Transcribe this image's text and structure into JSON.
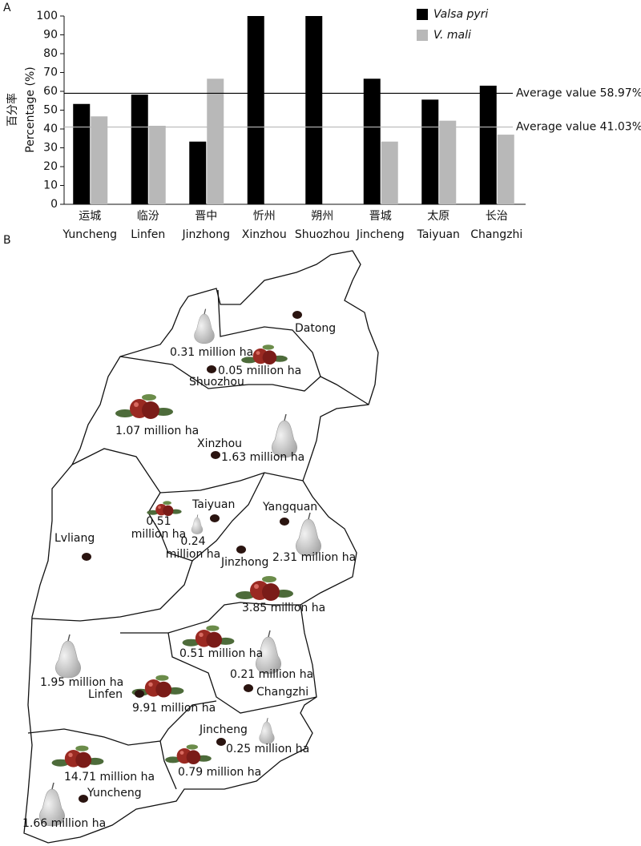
{
  "chart_data": {
    "type": "bar",
    "panel_label": "A",
    "y_label": "Percentage (%)",
    "y_label_zh": "百分率",
    "categories": [
      "Yuncheng",
      "Linfen",
      "Jinzhong",
      "Xinzhou",
      "Shuozhou",
      "Jincheng",
      "Taiyuan",
      "Changzhi"
    ],
    "category_labels_zh": [
      "运城",
      "临汾",
      "晋中",
      "忻州",
      "朔州",
      "晋城",
      "太原",
      "长治"
    ],
    "series": [
      {
        "name": "Valsa pyri",
        "color": "#000000",
        "values": [
          53.3,
          58.3,
          33.3,
          100,
          100,
          66.7,
          55.6,
          63.0
        ]
      },
      {
        "name": "V. mali",
        "color": "#b8b8b8",
        "values": [
          46.7,
          41.7,
          66.7,
          0,
          0,
          33.3,
          44.4,
          37.0
        ]
      }
    ],
    "ylim": [
      0,
      100
    ],
    "yticks": [
      0,
      10,
      20,
      30,
      40,
      50,
      60,
      70,
      80,
      90,
      100
    ],
    "reference_lines": [
      {
        "value": 58.97,
        "label": "Average value 58.97%",
        "color": "#000000"
      },
      {
        "value": 41.03,
        "label": "Average value 41.03%",
        "color": "#b8b8b8"
      }
    ],
    "legend": "top-right"
  },
  "map": {
    "panel_label": "B",
    "cities": [
      "Datong",
      "Shuozhou",
      "Xinzhou",
      "Taiyuan",
      "Yangquan",
      "Lvliang",
      "Jinzhong",
      "Changzhi",
      "Linfen",
      "Jincheng",
      "Yuncheng"
    ],
    "areas": [
      "0.31 million ha",
      "0.05 million ha",
      "1.07 million ha",
      "1.63 million ha",
      "0.51 million ha",
      "0.24 million ha",
      "2.31 million ha",
      "3.85 million ha",
      "0.51 million ha",
      "0.21 million ha",
      "1.95 million ha",
      "9.91 million ha",
      "0.25 million ha",
      "0.79 million ha",
      "14.71 million ha",
      "1.66 million ha"
    ]
  }
}
